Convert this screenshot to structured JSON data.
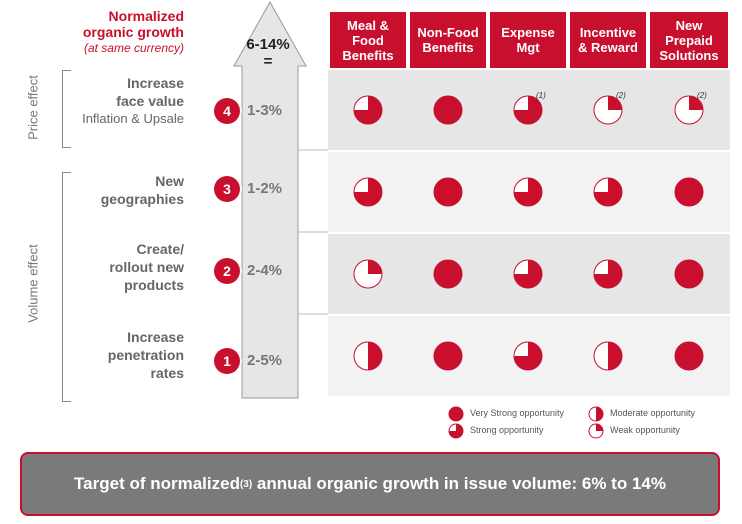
{
  "title": {
    "main": "Normalized organic growth",
    "main_line1": "Normalized",
    "main_line2": "organic growth",
    "sub": "(at same currency)"
  },
  "side_labels": {
    "price": "Price effect",
    "volume": "Volume effect"
  },
  "arrow": {
    "range": "6-14%",
    "eq": "="
  },
  "columns": [
    {
      "line1": "Meal &",
      "line2": "Food",
      "line3": "Benefits"
    },
    {
      "line1": "Non-Food",
      "line2": "Benefits",
      "line3": ""
    },
    {
      "line1": "Expense",
      "line2": "Mgt",
      "line3": ""
    },
    {
      "line1": "Incentive",
      "line2": "& Reward",
      "line3": ""
    },
    {
      "line1": "New",
      "line2": "Prepaid",
      "line3": "Solutions"
    }
  ],
  "rows": [
    {
      "num": "4",
      "pct": "1-3%",
      "line1": "Increase",
      "line2": "face value",
      "line3": "Inflation & Upsale",
      "levels": [
        0.75,
        1,
        0.75,
        0.25,
        0.25
      ],
      "notes": [
        "",
        "",
        "(1)",
        "(2)",
        "(2)"
      ]
    },
    {
      "num": "3",
      "pct": "1-2%",
      "line1": "New",
      "line2": "geographies",
      "line3": "",
      "levels": [
        0.75,
        1,
        0.75,
        0.75,
        1
      ],
      "notes": [
        "",
        "",
        "",
        "",
        ""
      ]
    },
    {
      "num": "2",
      "pct": "2-4%",
      "line1": "Create/",
      "line2": "rollout new",
      "line3": "products",
      "levels": [
        0.25,
        1,
        0.75,
        0.75,
        1
      ],
      "notes": [
        "",
        "",
        "",
        "",
        ""
      ]
    },
    {
      "num": "1",
      "pct": "2-5%",
      "line1": "Increase",
      "line2": "penetration",
      "line3": "rates",
      "levels": [
        0.5,
        1,
        0.75,
        0.5,
        1
      ],
      "notes": [
        "",
        "",
        "",
        "",
        ""
      ]
    }
  ],
  "legend": {
    "very_strong": "Very Strong opportunity",
    "strong": "Strong opportunity",
    "moderate": "Moderate opportunity",
    "weak": "Weak opportunity"
  },
  "target": {
    "pre": "Target of normalized",
    "sup": "(3)",
    "post": " annual organic growth in issue volume: 6% to 14%"
  },
  "colors": {
    "brand_red": "#c8102e",
    "row_light": "#f2f2f2",
    "row_dark": "#e6e6e6",
    "arrow_fill": "#e6e6e6",
    "target_bg": "#7a7a7a"
  }
}
